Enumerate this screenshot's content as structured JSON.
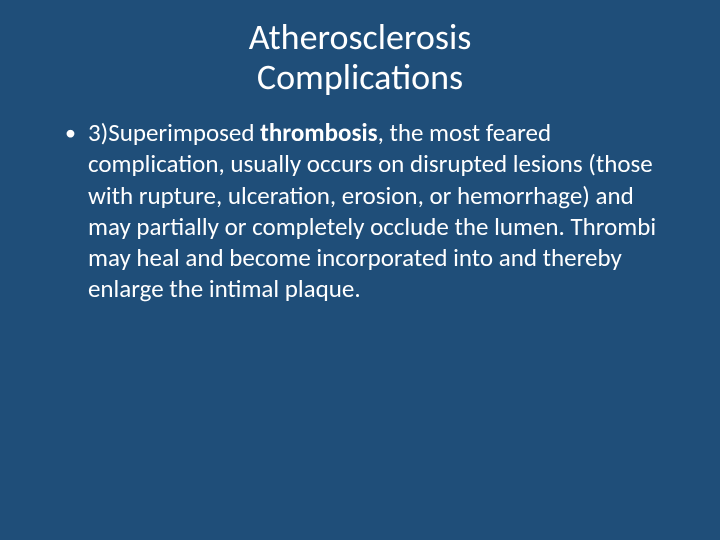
{
  "slide": {
    "background_color": "#1f4e79",
    "text_color": "#ffffff",
    "title": {
      "line1": "Atherosclerosis",
      "line2": "Complications",
      "fontsize": 36
    },
    "bullet": {
      "marker": "•",
      "marker_fontsize": 22,
      "text_fontsize": 25,
      "segments": {
        "pre": "3)Superimposed ",
        "bold": "thrombosis",
        "post": ", the most feared complication, usually occurs on disrupted lesions (those with rupture, ulceration, erosion, or hemorrhage) and may partially or completely occlude the lumen. Thrombi may heal and become incorporated into and thereby enlarge the intimal plaque."
      }
    }
  }
}
